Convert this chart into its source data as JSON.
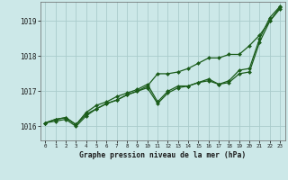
{
  "title": "Graphe pression niveau de la mer (hPa)",
  "background_color": "#cce8e8",
  "plot_bg_color": "#cce8e8",
  "grid_color": "#aacccc",
  "line_color": "#1a5c1a",
  "marker_color": "#1a5c1a",
  "xlim": [
    -0.5,
    23.5
  ],
  "ylim": [
    1015.6,
    1019.55
  ],
  "yticks": [
    1016,
    1017,
    1018,
    1019
  ],
  "xticks": [
    0,
    1,
    2,
    3,
    4,
    5,
    6,
    7,
    8,
    9,
    10,
    11,
    12,
    13,
    14,
    15,
    16,
    17,
    18,
    19,
    20,
    21,
    22,
    23
  ],
  "series1": [
    1016.1,
    1016.15,
    1016.2,
    1016.0,
    1016.3,
    1016.5,
    1016.65,
    1016.75,
    1016.9,
    1017.0,
    1017.15,
    1017.5,
    1017.5,
    1017.55,
    1017.65,
    1017.8,
    1017.95,
    1017.95,
    1018.05,
    1018.05,
    1018.3,
    1018.6,
    1019.0,
    1019.4
  ],
  "series2": [
    1016.1,
    1016.2,
    1016.25,
    1016.05,
    1016.35,
    1016.5,
    1016.65,
    1016.75,
    1016.9,
    1017.0,
    1017.1,
    1016.65,
    1016.95,
    1017.1,
    1017.15,
    1017.25,
    1017.3,
    1017.2,
    1017.25,
    1017.5,
    1017.55,
    1018.4,
    1019.0,
    1019.35
  ],
  "series3": [
    1016.1,
    1016.2,
    1016.25,
    1016.05,
    1016.4,
    1016.6,
    1016.7,
    1016.85,
    1016.95,
    1017.05,
    1017.2,
    1016.7,
    1017.0,
    1017.15,
    1017.15,
    1017.25,
    1017.35,
    1017.2,
    1017.3,
    1017.6,
    1017.65,
    1018.5,
    1019.1,
    1019.42
  ]
}
